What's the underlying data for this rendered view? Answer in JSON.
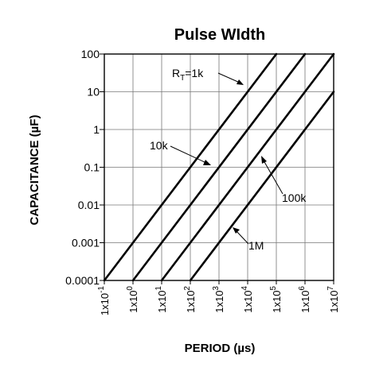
{
  "chart_data": {
    "type": "line",
    "title": "Pulse WIdth",
    "xlabel": "PERIOD (µs)",
    "ylabel": "CAPACITANCE (µF)",
    "x_scale": "log",
    "y_scale": "log",
    "xlim": [
      0.1,
      10000000
    ],
    "ylim": [
      0.0001,
      100
    ],
    "grid": true,
    "x_ticks": [
      {
        "exp": "-1"
      },
      {
        "exp": "0"
      },
      {
        "exp": "1"
      },
      {
        "exp": "2"
      },
      {
        "exp": "3"
      },
      {
        "exp": "4"
      },
      {
        "exp": "5"
      },
      {
        "exp": "6"
      },
      {
        "exp": "7"
      }
    ],
    "x_tick_mantissa": "1x10",
    "y_ticks": [
      {
        "value": 100,
        "label": "100"
      },
      {
        "value": 10,
        "label": "10"
      },
      {
        "value": 1,
        "label": "1"
      },
      {
        "value": 0.1,
        "label": "0.1"
      },
      {
        "value": 0.01,
        "label": "0.01"
      },
      {
        "value": 0.001,
        "label": "0.001"
      },
      {
        "value": 0.0001,
        "label": "0.0001"
      }
    ],
    "series": [
      {
        "x": [
          0.1,
          100000
        ],
        "y": [
          0.0001,
          100
        ]
      },
      {
        "x": [
          1,
          1000000
        ],
        "y": [
          0.0001,
          100
        ]
      },
      {
        "x": [
          10,
          10000000
        ],
        "y": [
          0.0001,
          100
        ]
      },
      {
        "x": [
          100,
          10000000
        ],
        "y": [
          0.0001,
          10
        ]
      }
    ],
    "annotations": [
      {
        "text": "R",
        "sub": "T",
        "suffix": "=1k"
      },
      {
        "text": "10k"
      },
      {
        "text": "100k"
      },
      {
        "text": "1M"
      }
    ]
  }
}
